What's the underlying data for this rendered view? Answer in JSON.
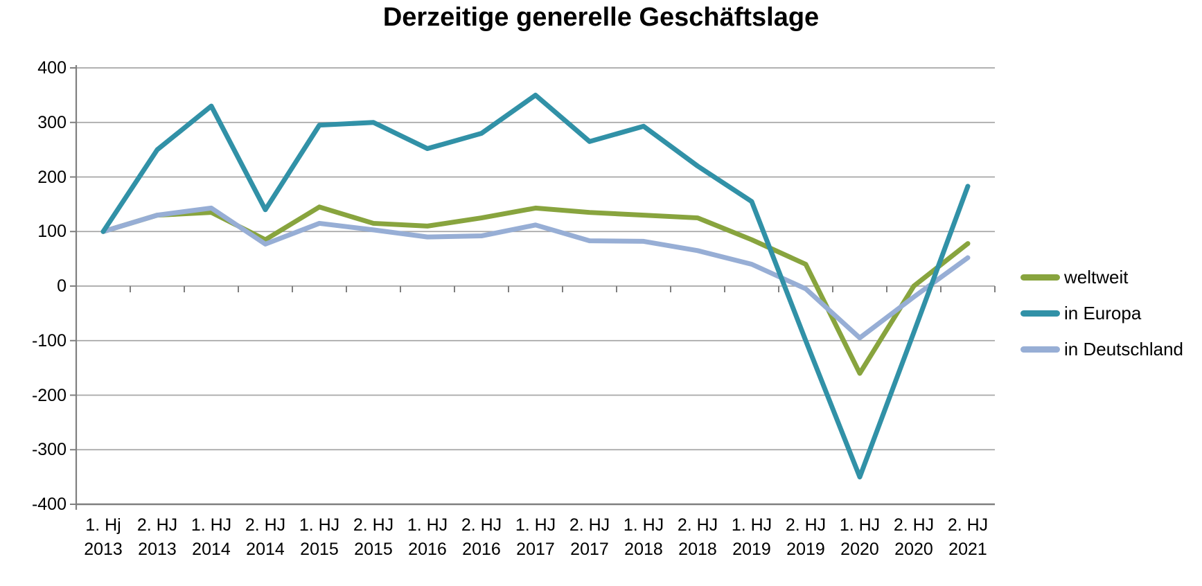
{
  "chart_data": {
    "type": "line",
    "title": "Derzeitige generelle Geschäftslage",
    "categories": [
      {
        "period": "1. Hj",
        "year": "2013"
      },
      {
        "period": "2. HJ",
        "year": "2013"
      },
      {
        "period": "1. HJ",
        "year": "2014"
      },
      {
        "period": "2. HJ",
        "year": "2014"
      },
      {
        "period": "1. HJ",
        "year": "2015"
      },
      {
        "period": "2. HJ",
        "year": "2015"
      },
      {
        "period": "1. HJ",
        "year": "2016"
      },
      {
        "period": "2. HJ",
        "year": "2016"
      },
      {
        "period": "1. HJ",
        "year": "2017"
      },
      {
        "period": "2. HJ",
        "year": "2017"
      },
      {
        "period": "1. HJ",
        "year": "2018"
      },
      {
        "period": "2. HJ",
        "year": "2018"
      },
      {
        "period": "1. HJ",
        "year": "2019"
      },
      {
        "period": "2. HJ",
        "year": "2019"
      },
      {
        "period": "1. HJ",
        "year": "2020"
      },
      {
        "period": "2. HJ",
        "year": "2020"
      },
      {
        "period": "2. HJ",
        "year": "2021"
      }
    ],
    "series": [
      {
        "name": "weltweit",
        "color": "#88A43E",
        "values": [
          100,
          130,
          135,
          85,
          145,
          115,
          110,
          125,
          143,
          135,
          130,
          125,
          85,
          40,
          -160,
          0,
          78
        ]
      },
      {
        "name": "in Europa",
        "color": "#3191A7",
        "values": [
          100,
          250,
          330,
          140,
          295,
          300,
          252,
          280,
          350,
          265,
          293,
          220,
          155,
          -100,
          -350,
          -85,
          183
        ]
      },
      {
        "name": "in Deutschland",
        "color": "#97AED5",
        "values": [
          100,
          130,
          143,
          77,
          115,
          103,
          90,
          92,
          112,
          83,
          82,
          65,
          40,
          -5,
          -95,
          -20,
          52
        ]
      }
    ],
    "ylim": [
      -400,
      400
    ],
    "ytick_step": 100,
    "yticks": [
      400,
      300,
      200,
      100,
      0,
      -100,
      -200,
      -300,
      -400
    ],
    "grid": true,
    "legend_position": "right",
    "colors": {
      "gridline": "#A6A6A6",
      "axis": "#7F7F7F",
      "text": "#000000"
    }
  }
}
